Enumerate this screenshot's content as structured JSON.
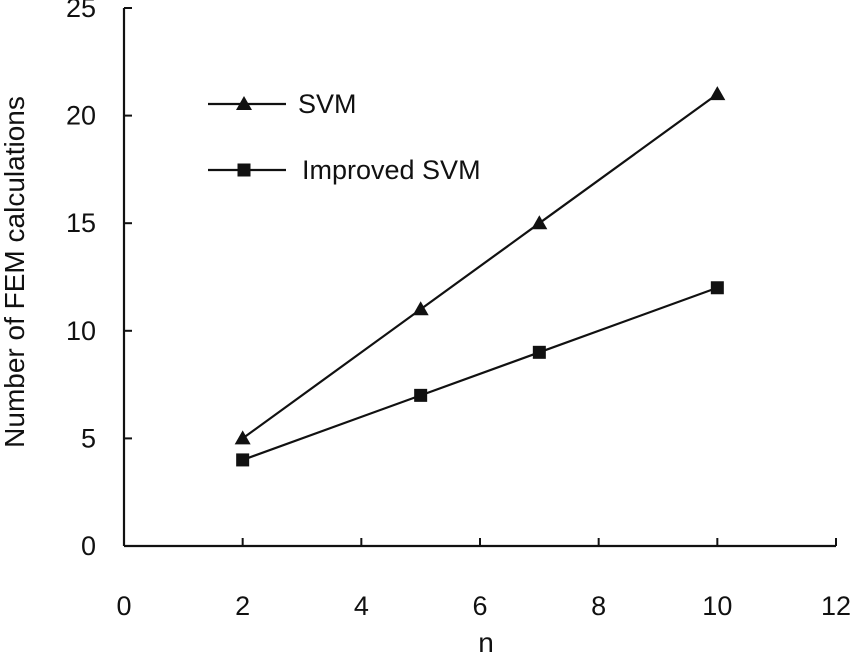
{
  "chart_data": {
    "type": "line",
    "title": "",
    "xlabel": "n",
    "ylabel": "Number of FEM calculations",
    "xlim": [
      0,
      12
    ],
    "ylim": [
      0,
      25
    ],
    "xticks": [
      0,
      2,
      4,
      6,
      8,
      10,
      12
    ],
    "yticks": [
      0,
      5,
      10,
      15,
      20,
      25
    ],
    "grid": false,
    "legend_position": "top-left",
    "series": [
      {
        "name": "SVM",
        "marker": "triangle",
        "color": "#111111",
        "x": [
          2,
          5,
          7,
          10
        ],
        "y": [
          5,
          11,
          15,
          21
        ]
      },
      {
        "name": "Improved SVM",
        "marker": "square",
        "color": "#111111",
        "x": [
          2,
          5,
          7,
          10
        ],
        "y": [
          4,
          7,
          9,
          12
        ]
      }
    ]
  }
}
